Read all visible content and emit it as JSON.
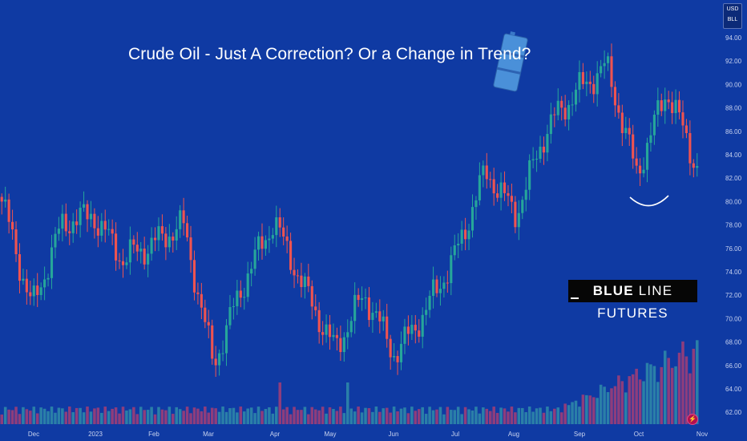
{
  "title": "Crude Oil - Just A Correction? Or a Change in Trend?",
  "currency": {
    "line1": "USD",
    "line2": "BLL"
  },
  "brand": {
    "bold_part": "BLUE",
    "rest": " LINE FUTURES"
  },
  "colors": {
    "background": "#0f3aa3",
    "bull": "#26a69a",
    "bear": "#ef5350",
    "bull_volume": "#2a7fa8",
    "bear_volume": "#8e3d7c",
    "axis_text": "#c9d3ef",
    "barrel": "#4a90d9"
  },
  "icons": [
    "oil-barrel-icon",
    "bolt-icon"
  ],
  "chart_data": {
    "type": "candlestick",
    "instrument": "Crude Oil (USD/BLL)",
    "y_axis": {
      "ticks": [
        94,
        92,
        90,
        88,
        86,
        84,
        82,
        80,
        78,
        76,
        74,
        72,
        70,
        68,
        66,
        64,
        62
      ],
      "ylim": [
        61,
        95
      ]
    },
    "x_axis": {
      "labels": [
        "Dec",
        "2023",
        "Feb",
        "Mar",
        "Apr",
        "May",
        "Jun",
        "Jul",
        "Aug",
        "Sep",
        "Oct",
        "Nov"
      ]
    },
    "close_path": [
      {
        "month": "Nov",
        "close": 79.5
      },
      {
        "month": "Dec",
        "close": 71.5
      },
      {
        "month": "2023",
        "close": 77.5
      },
      {
        "month": "Jan",
        "close": 79.5
      },
      {
        "month": "Feb",
        "close": 74.5
      },
      {
        "month": "Feb",
        "close": 77.0
      },
      {
        "month": "Mar",
        "close": 77.5
      },
      {
        "month": "Mar",
        "close": 66.7
      },
      {
        "month": "Apr",
        "close": 72.5
      },
      {
        "month": "Apr",
        "close": 79.0
      },
      {
        "month": "May",
        "close": 72.0
      },
      {
        "month": "May",
        "close": 68.0
      },
      {
        "month": "Jun",
        "close": 71.5
      },
      {
        "month": "Jun",
        "close": 67.5
      },
      {
        "month": "Jul",
        "close": 70.0
      },
      {
        "month": "Jul",
        "close": 76.0
      },
      {
        "month": "Aug",
        "close": 82.0
      },
      {
        "month": "Aug",
        "close": 79.5
      },
      {
        "month": "Sep",
        "close": 85.5
      },
      {
        "month": "Sep",
        "close": 90.0
      },
      {
        "month": "Oct",
        "close": 91.0
      },
      {
        "month": "Oct",
        "close": 83.0
      },
      {
        "month": "Oct",
        "close": 89.0
      },
      {
        "month": "Nov",
        "close": 83.5
      }
    ],
    "volume": "relative volume bars along bottom, rising sharply from September into late October"
  }
}
